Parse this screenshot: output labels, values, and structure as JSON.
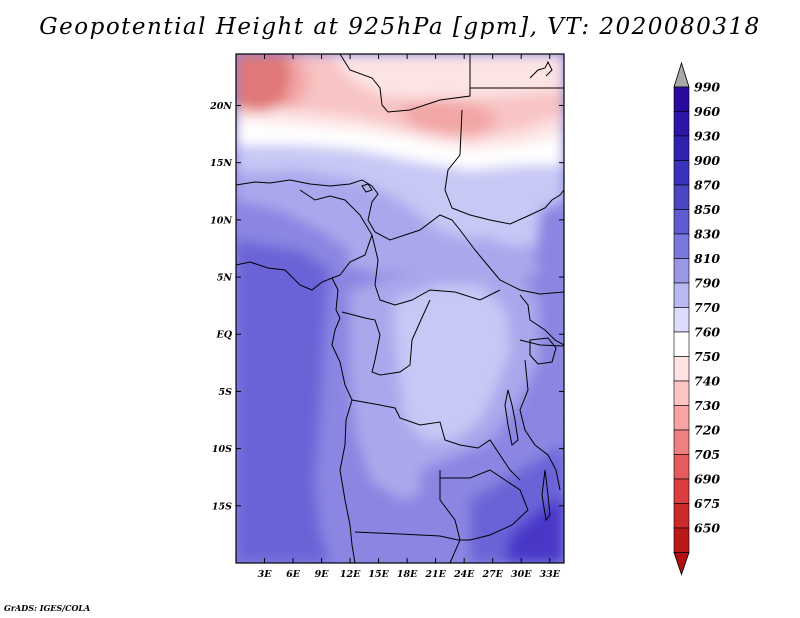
{
  "title": "Geopotential Height at 925hPa [gpm], VT: 2020080318",
  "credit": "GrADS: IGES/COLA",
  "map": {
    "lon_range": [
      0,
      34.5
    ],
    "lat_range": [
      -20,
      24.5
    ],
    "lat_ticks": [
      {
        "value": 20,
        "label": "20N"
      },
      {
        "value": 15,
        "label": "15N"
      },
      {
        "value": 10,
        "label": "10N"
      },
      {
        "value": 5,
        "label": "5N"
      },
      {
        "value": 0,
        "label": "EQ"
      },
      {
        "value": -5,
        "label": "5S"
      },
      {
        "value": -10,
        "label": "10S"
      },
      {
        "value": -15,
        "label": "15S"
      }
    ],
    "lon_ticks": [
      {
        "value": 3,
        "label": "3E"
      },
      {
        "value": 6,
        "label": "6E"
      },
      {
        "value": 9,
        "label": "9E"
      },
      {
        "value": 12,
        "label": "12E"
      },
      {
        "value": 15,
        "label": "15E"
      },
      {
        "value": 18,
        "label": "18E"
      },
      {
        "value": 21,
        "label": "21E"
      },
      {
        "value": 24,
        "label": "24E"
      },
      {
        "value": 27,
        "label": "27E"
      },
      {
        "value": 30,
        "label": "30E"
      },
      {
        "value": 33,
        "label": "33E"
      }
    ]
  },
  "colorbar": {
    "levels": [
      {
        "label": "990",
        "color": "#2a0a9e"
      },
      {
        "label": "960",
        "color": "#2e14a8"
      },
      {
        "label": "930",
        "color": "#3222b2"
      },
      {
        "label": "900",
        "color": "#3a32bc"
      },
      {
        "label": "870",
        "color": "#4a46c4"
      },
      {
        "label": "850",
        "color": "#5e5cd0"
      },
      {
        "label": "830",
        "color": "#7a78dc"
      },
      {
        "label": "810",
        "color": "#9a98e6"
      },
      {
        "label": "790",
        "color": "#bab8f0"
      },
      {
        "label": "770",
        "color": "#dcdcfc"
      },
      {
        "label": "760",
        "color": "#ffffff"
      },
      {
        "label": "750",
        "color": "#ffe2e2"
      },
      {
        "label": "740",
        "color": "#fcc4c4"
      },
      {
        "label": "730",
        "color": "#f8a4a4"
      },
      {
        "label": "720",
        "color": "#f08080"
      },
      {
        "label": "705",
        "color": "#e65c5c"
      },
      {
        "label": "690",
        "color": "#da3e3e"
      },
      {
        "label": "675",
        "color": "#cc2a2a"
      },
      {
        "label": "650",
        "color": "#b81818"
      }
    ],
    "over_color": "#a8a8a8",
    "under_color": "#b01010"
  },
  "field_colors": {
    "deep_blue": "#4838c8",
    "blue": "#6a64d8",
    "mid_blue": "#8a86e2",
    "light_blue": "#aaa8ec",
    "pale_blue": "#c8c8f6",
    "very_pale_blue": "#e2e2fc",
    "white": "#ffffff",
    "pale_pink": "#fde4e4",
    "pink": "#f8c4c4",
    "rose": "#f2a6a6",
    "red": "#e07878"
  }
}
